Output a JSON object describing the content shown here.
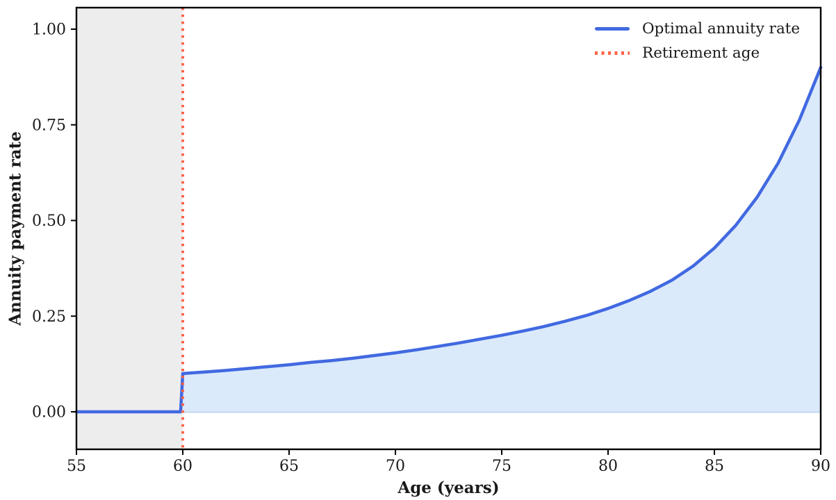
{
  "figure": {
    "xlabel": "Age (years)",
    "ylabel": "Annuity payment rate"
  },
  "legend": {
    "items": [
      {
        "label": "Optimal annuity rate",
        "marker": "solid-line",
        "color": "#4169e1"
      },
      {
        "label": "Retirement age",
        "marker": "dotted-line",
        "color": "#ff6347"
      }
    ]
  },
  "chart_data": {
    "type": "line",
    "title": "",
    "xlabel": "Age (years)",
    "ylabel": "Annuity payment rate",
    "xlim": [
      55,
      90
    ],
    "ylim": [
      -0.1,
      1.05
    ],
    "x_ticks": [
      55,
      60,
      65,
      70,
      75,
      80,
      85,
      90
    ],
    "y_ticks": [
      0.0,
      0.25,
      0.5,
      0.75,
      1.0
    ],
    "y_tick_labels": [
      "0.00",
      "0.25",
      "0.50",
      "0.75",
      "1.00"
    ],
    "grid": false,
    "legend_position": "upper right",
    "series": [
      {
        "name": "Optimal annuity rate",
        "type": "line",
        "color": "#4169e1",
        "fill_below_color": "#dbeafb",
        "fill_edge_color": "#c2d6ee",
        "fill_from_x": 60,
        "x": [
          55,
          56,
          57,
          58,
          59,
          59.9,
          60,
          61,
          62,
          63,
          64,
          65,
          66,
          67,
          68,
          69,
          70,
          71,
          72,
          73,
          74,
          75,
          76,
          77,
          78,
          79,
          80,
          81,
          82,
          83,
          84,
          85,
          86,
          87,
          88,
          89,
          90
        ],
        "y": [
          0,
          0,
          0,
          0,
          0,
          0,
          0.1,
          0.104,
          0.108,
          0.113,
          0.118,
          0.123,
          0.129,
          0.134,
          0.14,
          0.147,
          0.154,
          0.162,
          0.171,
          0.18,
          0.19,
          0.2,
          0.211,
          0.223,
          0.237,
          0.252,
          0.27,
          0.291,
          0.315,
          0.344,
          0.381,
          0.428,
          0.487,
          0.56,
          0.65,
          0.763,
          0.9
        ]
      },
      {
        "name": "Retirement age",
        "type": "vline",
        "x": 60,
        "color": "#ff6347",
        "style": "dotted"
      }
    ],
    "shaded_region": {
      "x_start": 55,
      "x_end": 60,
      "color": "#ededee",
      "meaning": "pre-retirement ages"
    }
  }
}
